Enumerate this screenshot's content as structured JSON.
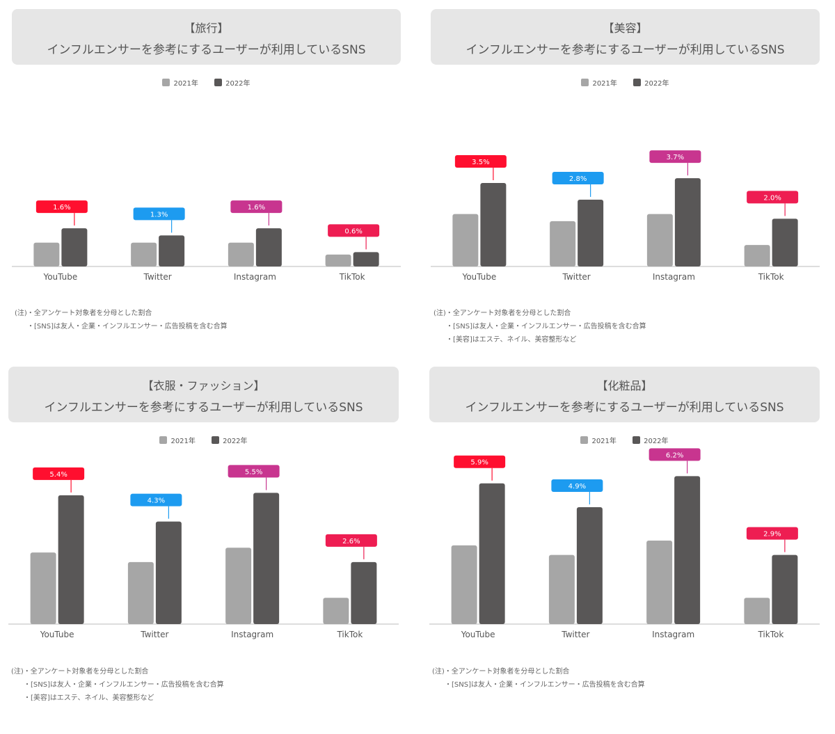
{
  "panels": [
    {
      "title_line1": "【旅行】",
      "title_line2": "インフルエンサーを参考にするユーザーが利用しているSNS",
      "notes": [
        "(注)・全アンケート対象者を分母とした割合",
        "・[SNS]は友人・企業・インフルエンサー・広告投稿を含む合算"
      ]
    },
    {
      "title_line1": "【美容】",
      "title_line2": "インフルエンサーを参考にするユーザーが利用しているSNS",
      "notes": [
        "(注)・全アンケート対象者を分母とした割合",
        "・[SNS]は友人・企業・インフルエンサー・広告投稿を含む合算",
        "・[美容]はエステ、ネイル、美容整形など"
      ]
    },
    {
      "title_line1": "【衣服・ファッション】",
      "title_line2": "インフルエンサーを参考にするユーザーが利用しているSNS",
      "notes": [
        "(注)・全アンケート対象者を分母とした割合",
        "・[SNS]は友人・企業・インフルエンサー・広告投稿を含む合算",
        "・[美容]はエステ、ネイル、美容整形など"
      ]
    },
    {
      "title_line1": "【化粧品】",
      "title_line2": "インフルエンサーを参考にするユーザーが利用しているSNS",
      "notes": [
        "(注)・全アンケート対象者を分母とした割合",
        "・[SNS]は友人・企業・インフルエンサー・広告投稿を含む合算"
      ]
    }
  ],
  "legend": {
    "series_2021": "2021年",
    "series_2022": "2022年"
  },
  "colors": {
    "bar_2021": "#a6a6a6",
    "bar_2022": "#595757",
    "youtube": "#ff0f2f",
    "twitter": "#1d9bf0",
    "instagram": "#c8358f",
    "tiktok": "#ee1d52",
    "axis": "#bbbbbb"
  },
  "chart_data": [
    {
      "type": "bar",
      "title": "【旅行】 インフルエンサーを参考にするユーザーが利用しているSNS",
      "categories": [
        "YouTube",
        "Twitter",
        "Instagram",
        "TikTok"
      ],
      "series": [
        {
          "name": "2021年",
          "values": [
            1.0,
            1.0,
            1.0,
            0.5
          ]
        },
        {
          "name": "2022年",
          "values": [
            1.6,
            1.3,
            1.6,
            0.6
          ]
        }
      ],
      "data_labels": [
        "1.6%",
        "1.3%",
        "1.6%",
        "0.6%"
      ],
      "ylim": [
        0,
        7.0
      ],
      "grid": false,
      "legend_position": "top"
    },
    {
      "type": "bar",
      "title": "【美容】 インフルエンサーを参考にするユーザーが利用しているSNS",
      "categories": [
        "YouTube",
        "Twitter",
        "Instagram",
        "TikTok"
      ],
      "series": [
        {
          "name": "2021年",
          "values": [
            2.2,
            1.9,
            2.2,
            0.9
          ]
        },
        {
          "name": "2022年",
          "values": [
            3.5,
            2.8,
            3.7,
            2.0
          ]
        }
      ],
      "data_labels": [
        "3.5%",
        "2.8%",
        "3.7%",
        "2.0%"
      ],
      "ylim": [
        0,
        7.0
      ],
      "grid": false,
      "legend_position": "top"
    },
    {
      "type": "bar",
      "title": "【衣服・ファッション】 インフルエンサーを参考にするユーザーが利用しているSNS",
      "categories": [
        "YouTube",
        "Twitter",
        "Instagram",
        "TikTok"
      ],
      "series": [
        {
          "name": "2021年",
          "values": [
            3.0,
            2.6,
            3.2,
            1.1
          ]
        },
        {
          "name": "2022年",
          "values": [
            5.4,
            4.3,
            5.5,
            2.6
          ]
        }
      ],
      "data_labels": [
        "5.4%",
        "4.3%",
        "5.5%",
        "2.6%"
      ],
      "ylim": [
        0,
        7.0
      ],
      "grid": false,
      "legend_position": "top"
    },
    {
      "type": "bar",
      "title": "【化粧品】 インフルエンサーを参考にするユーザーが利用しているSNS",
      "categories": [
        "YouTube",
        "Twitter",
        "Instagram",
        "TikTok"
      ],
      "series": [
        {
          "name": "2021年",
          "values": [
            3.3,
            2.9,
            3.5,
            1.1
          ]
        },
        {
          "name": "2022年",
          "values": [
            5.9,
            4.9,
            6.2,
            2.9
          ]
        }
      ],
      "data_labels": [
        "5.9%",
        "4.9%",
        "6.2%",
        "2.9%"
      ],
      "ylim": [
        0,
        7.0
      ],
      "grid": false,
      "legend_position": "top"
    }
  ]
}
